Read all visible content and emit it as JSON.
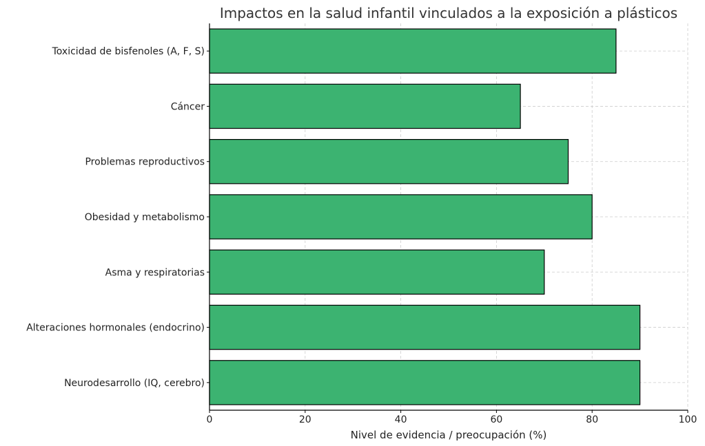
{
  "chart_data": {
    "type": "bar",
    "orientation": "horizontal",
    "title": "Impactos en la salud infantil vinculados a la exposición a plásticos",
    "xlabel": "Nivel de evidencia / preocupación (%)",
    "ylabel": "",
    "xlim": [
      0,
      100
    ],
    "xticks": [
      0,
      20,
      40,
      60,
      80,
      100
    ],
    "grid": true,
    "categories": [
      "Toxicidad de bisfenoles (A, F, S)",
      "Cáncer",
      "Problemas reproductivos",
      "Obesidad y metabolismo",
      "Asma y respiratorias",
      "Alteraciones hormonales (endocrino)",
      "Neurodesarrollo (IQ, cerebro)"
    ],
    "values": [
      85,
      65,
      75,
      80,
      70,
      90,
      90
    ],
    "bar_color": "#3cb371",
    "edge_color": "#000000"
  }
}
